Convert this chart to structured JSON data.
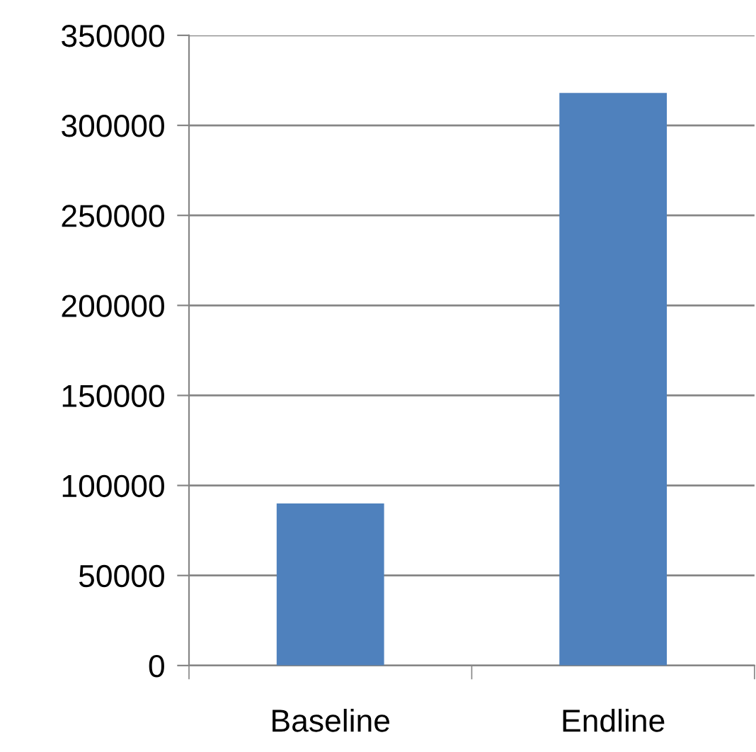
{
  "chart_data": {
    "type": "bar",
    "categories": [
      "Baseline",
      "Endline"
    ],
    "values": [
      90000,
      318000
    ],
    "color": "#4f81bd",
    "ylim": [
      0,
      350000
    ],
    "yticks": [
      0,
      50000,
      100000,
      150000,
      200000,
      250000,
      300000,
      350000
    ],
    "grid": "y"
  }
}
